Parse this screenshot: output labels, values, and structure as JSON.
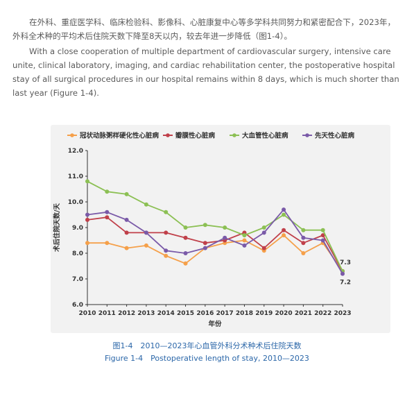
{
  "text": {
    "cn": "在外科、重症医学科、临床检验科、影像科、心脏康复中心等多学科共同努力和紧密配合下，2023年，外科全术种的平均术后住院天数下降至8天以内，较去年进一步降低（图1-4）。",
    "en": "With a close cooperation of multiple department of cardiovascular surgery, intensive care unite, clinical laboratory, imaging, and cardiac rehabilitation center, the postoperative hospital stay of all surgical procedures in our hospital remains within 8 days, which is much shorter than last year (Figure 1-4)."
  },
  "caption": {
    "cn": "图1-4　2010—2023年心血管外科分术种术后住院天数",
    "en": "Figure 1-4　Postoperative length of stay, 2010—2023"
  },
  "chart_data": {
    "type": "line",
    "xlabel": "年份",
    "ylabel": "术后住院天数/天",
    "x": [
      2010,
      2011,
      2012,
      2013,
      2014,
      2015,
      2016,
      2017,
      2018,
      2019,
      2020,
      2021,
      2022,
      2023
    ],
    "ylim": [
      6.0,
      12.0
    ],
    "yticks": [
      "6.0",
      "7.0",
      "8.0",
      "9.0",
      "10.0",
      "11.0",
      "12.0"
    ],
    "grid": false,
    "legend_position": "top",
    "series": [
      {
        "name": "冠状动脉粥样硬化性心脏病",
        "color": "#f5a04a",
        "values": [
          8.4,
          8.4,
          8.2,
          8.3,
          7.9,
          7.6,
          8.2,
          8.4,
          8.5,
          8.1,
          8.7,
          8.0,
          8.4,
          7.3
        ]
      },
      {
        "name": "瓣膜性心脏病",
        "color": "#c0404a",
        "values": [
          9.3,
          9.4,
          8.8,
          8.8,
          8.8,
          8.6,
          8.4,
          8.5,
          8.8,
          8.2,
          8.9,
          8.4,
          8.7,
          7.3
        ]
      },
      {
        "name": "大血管性心脏病",
        "color": "#8cc054",
        "values": [
          10.8,
          10.4,
          10.3,
          9.9,
          9.6,
          9.0,
          9.1,
          9.0,
          8.7,
          9.0,
          9.5,
          8.9,
          8.9,
          7.3
        ]
      },
      {
        "name": "先天性心脏病",
        "color": "#7a5aa8",
        "values": [
          9.5,
          9.6,
          9.3,
          8.8,
          8.1,
          8.0,
          8.2,
          8.6,
          8.3,
          8.8,
          9.7,
          8.6,
          8.5,
          7.2
        ]
      }
    ],
    "annotations": [
      {
        "x": 2023,
        "y": 7.3,
        "text": "7.3",
        "position": "above"
      },
      {
        "x": 2023,
        "y": 7.2,
        "text": "7.2",
        "position": "below"
      }
    ]
  }
}
